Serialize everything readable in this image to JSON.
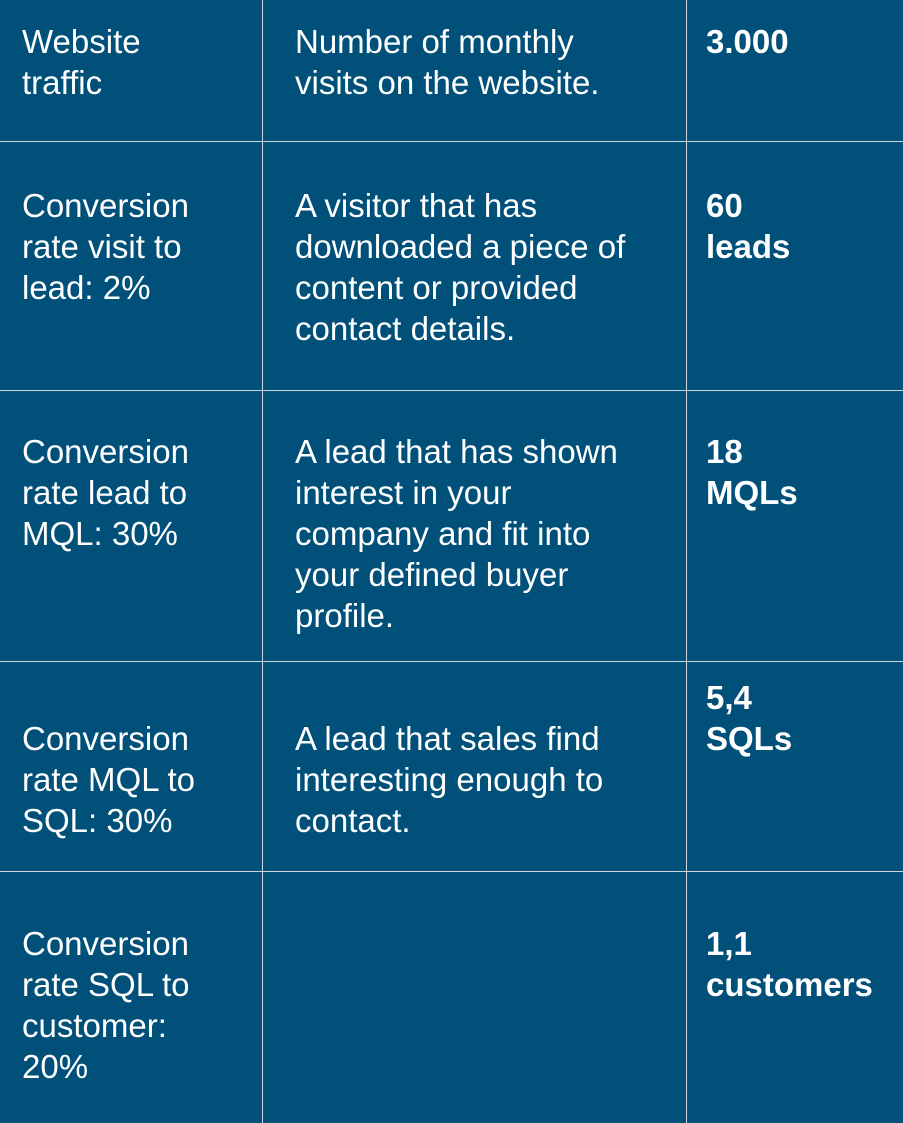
{
  "rows": [
    {
      "metric": "Website\ntraffic",
      "description": "Number of monthly\nvisits on the website.",
      "result": "3.000"
    },
    {
      "metric": "Conversion\nrate visit to\nlead: 2%",
      "description": "A visitor that has\ndownloaded a piece of\ncontent or provided\ncontact details.",
      "result": "60\nleads"
    },
    {
      "metric": "Conversion\nrate lead to\nMQL: 30%",
      "description": "A lead that has shown\ninterest in your\ncompany and fit into\nyour defined buyer\nprofile.",
      "result": "18\nMQLs"
    },
    {
      "metric": "Conversion\nrate MQL to\nSQL: 30%",
      "description": "A lead that sales find\ninteresting enough to\ncontact.",
      "result": "5,4\nSQLs"
    },
    {
      "metric": "Conversion\nrate SQL to\ncustomer:\n20%",
      "description": "",
      "result": "1,1\ncustomers"
    }
  ]
}
